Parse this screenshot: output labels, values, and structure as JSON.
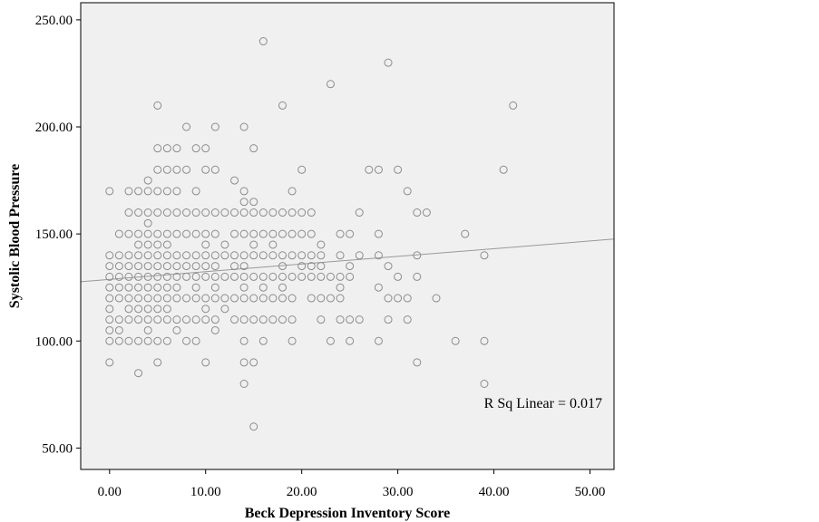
{
  "chart_data": {
    "type": "scatter",
    "xlabel": "Beck Depression Inventory Score",
    "ylabel": "Systolic Blood Pressure",
    "xlim": [
      -3,
      52.5
    ],
    "ylim": [
      40,
      258
    ],
    "x_ticks": [
      "0.00",
      "10.00",
      "20.00",
      "30.00",
      "40.00",
      "50.00"
    ],
    "y_ticks": [
      "50.00",
      "100.00",
      "150.00",
      "200.00",
      "250.00"
    ],
    "annotation": "R Sq Linear = 0.017",
    "fit_line": {
      "x": [
        -3,
        52.5
      ],
      "y": [
        127.7,
        147.6
      ]
    },
    "grid": false,
    "colors": {
      "plot_bg": "#f0f0f0",
      "marker": "#8c8c8c",
      "fit": "#999999",
      "frame": "#000000"
    },
    "points": [
      [
        0,
        170
      ],
      [
        0,
        140
      ],
      [
        0,
        135
      ],
      [
        0,
        130
      ],
      [
        0,
        125
      ],
      [
        0,
        120
      ],
      [
        0,
        115
      ],
      [
        0,
        110
      ],
      [
        0,
        105
      ],
      [
        0,
        100
      ],
      [
        0,
        90
      ],
      [
        1,
        150
      ],
      [
        1,
        140
      ],
      [
        1,
        130
      ],
      [
        1,
        120
      ],
      [
        1,
        110
      ],
      [
        1,
        100
      ],
      [
        1,
        105
      ],
      [
        1,
        125
      ],
      [
        1,
        135
      ],
      [
        2,
        170
      ],
      [
        2,
        160
      ],
      [
        2,
        150
      ],
      [
        2,
        140
      ],
      [
        2,
        135
      ],
      [
        2,
        130
      ],
      [
        2,
        125
      ],
      [
        2,
        120
      ],
      [
        2,
        115
      ],
      [
        2,
        110
      ],
      [
        2,
        100
      ],
      [
        3,
        170
      ],
      [
        3,
        160
      ],
      [
        3,
        150
      ],
      [
        3,
        145
      ],
      [
        3,
        140
      ],
      [
        3,
        135
      ],
      [
        3,
        130
      ],
      [
        3,
        125
      ],
      [
        3,
        120
      ],
      [
        3,
        115
      ],
      [
        3,
        110
      ],
      [
        3,
        100
      ],
      [
        3,
        85
      ],
      [
        4,
        175
      ],
      [
        4,
        170
      ],
      [
        4,
        160
      ],
      [
        4,
        155
      ],
      [
        4,
        150
      ],
      [
        4,
        145
      ],
      [
        4,
        140
      ],
      [
        4,
        135
      ],
      [
        4,
        130
      ],
      [
        4,
        125
      ],
      [
        4,
        120
      ],
      [
        4,
        115
      ],
      [
        4,
        110
      ],
      [
        4,
        105
      ],
      [
        4,
        100
      ],
      [
        5,
        210
      ],
      [
        5,
        190
      ],
      [
        5,
        180
      ],
      [
        5,
        170
      ],
      [
        5,
        160
      ],
      [
        5,
        150
      ],
      [
        5,
        145
      ],
      [
        5,
        140
      ],
      [
        5,
        135
      ],
      [
        5,
        130
      ],
      [
        5,
        125
      ],
      [
        5,
        120
      ],
      [
        5,
        115
      ],
      [
        5,
        110
      ],
      [
        5,
        100
      ],
      [
        5,
        90
      ],
      [
        6,
        190
      ],
      [
        6,
        180
      ],
      [
        6,
        170
      ],
      [
        6,
        160
      ],
      [
        6,
        150
      ],
      [
        6,
        145
      ],
      [
        6,
        140
      ],
      [
        6,
        135
      ],
      [
        6,
        130
      ],
      [
        6,
        125
      ],
      [
        6,
        120
      ],
      [
        6,
        115
      ],
      [
        6,
        110
      ],
      [
        6,
        100
      ],
      [
        7,
        190
      ],
      [
        7,
        180
      ],
      [
        7,
        170
      ],
      [
        7,
        160
      ],
      [
        7,
        150
      ],
      [
        7,
        140
      ],
      [
        7,
        135
      ],
      [
        7,
        130
      ],
      [
        7,
        125
      ],
      [
        7,
        120
      ],
      [
        7,
        110
      ],
      [
        7,
        105
      ],
      [
        8,
        200
      ],
      [
        8,
        180
      ],
      [
        8,
        160
      ],
      [
        8,
        150
      ],
      [
        8,
        140
      ],
      [
        8,
        135
      ],
      [
        8,
        130
      ],
      [
        8,
        120
      ],
      [
        8,
        110
      ],
      [
        8,
        100
      ],
      [
        9,
        190
      ],
      [
        9,
        170
      ],
      [
        9,
        160
      ],
      [
        9,
        150
      ],
      [
        9,
        140
      ],
      [
        9,
        135
      ],
      [
        9,
        130
      ],
      [
        9,
        125
      ],
      [
        9,
        120
      ],
      [
        9,
        110
      ],
      [
        9,
        100
      ],
      [
        10,
        190
      ],
      [
        10,
        180
      ],
      [
        10,
        160
      ],
      [
        10,
        150
      ],
      [
        10,
        145
      ],
      [
        10,
        140
      ],
      [
        10,
        135
      ],
      [
        10,
        130
      ],
      [
        10,
        120
      ],
      [
        10,
        115
      ],
      [
        10,
        110
      ],
      [
        10,
        90
      ],
      [
        11,
        200
      ],
      [
        11,
        180
      ],
      [
        11,
        160
      ],
      [
        11,
        150
      ],
      [
        11,
        140
      ],
      [
        11,
        135
      ],
      [
        11,
        130
      ],
      [
        11,
        125
      ],
      [
        11,
        120
      ],
      [
        11,
        110
      ],
      [
        11,
        105
      ],
      [
        12,
        160
      ],
      [
        12,
        145
      ],
      [
        12,
        140
      ],
      [
        12,
        130
      ],
      [
        12,
        120
      ],
      [
        12,
        115
      ],
      [
        13,
        175
      ],
      [
        13,
        160
      ],
      [
        13,
        150
      ],
      [
        13,
        140
      ],
      [
        13,
        135
      ],
      [
        13,
        130
      ],
      [
        13,
        120
      ],
      [
        13,
        110
      ],
      [
        14,
        200
      ],
      [
        14,
        170
      ],
      [
        14,
        165
      ],
      [
        14,
        160
      ],
      [
        14,
        150
      ],
      [
        14,
        140
      ],
      [
        14,
        135
      ],
      [
        14,
        130
      ],
      [
        14,
        125
      ],
      [
        14,
        120
      ],
      [
        14,
        110
      ],
      [
        14,
        100
      ],
      [
        14,
        90
      ],
      [
        14,
        80
      ],
      [
        15,
        190
      ],
      [
        15,
        165
      ],
      [
        15,
        160
      ],
      [
        15,
        150
      ],
      [
        15,
        145
      ],
      [
        15,
        140
      ],
      [
        15,
        130
      ],
      [
        15,
        120
      ],
      [
        15,
        110
      ],
      [
        15,
        90
      ],
      [
        15,
        60
      ],
      [
        16,
        240
      ],
      [
        16,
        160
      ],
      [
        16,
        150
      ],
      [
        16,
        140
      ],
      [
        16,
        130
      ],
      [
        16,
        125
      ],
      [
        16,
        120
      ],
      [
        16,
        110
      ],
      [
        16,
        100
      ],
      [
        17,
        160
      ],
      [
        17,
        150
      ],
      [
        17,
        145
      ],
      [
        17,
        140
      ],
      [
        17,
        130
      ],
      [
        17,
        120
      ],
      [
        17,
        110
      ],
      [
        18,
        210
      ],
      [
        18,
        160
      ],
      [
        18,
        150
      ],
      [
        18,
        140
      ],
      [
        18,
        135
      ],
      [
        18,
        130
      ],
      [
        18,
        125
      ],
      [
        18,
        120
      ],
      [
        18,
        110
      ],
      [
        19,
        170
      ],
      [
        19,
        160
      ],
      [
        19,
        150
      ],
      [
        19,
        140
      ],
      [
        19,
        130
      ],
      [
        19,
        120
      ],
      [
        19,
        110
      ],
      [
        19,
        100
      ],
      [
        20,
        180
      ],
      [
        20,
        160
      ],
      [
        20,
        150
      ],
      [
        20,
        140
      ],
      [
        20,
        135
      ],
      [
        20,
        130
      ],
      [
        21,
        160
      ],
      [
        21,
        150
      ],
      [
        21,
        140
      ],
      [
        21,
        135
      ],
      [
        21,
        130
      ],
      [
        21,
        120
      ],
      [
        22,
        145
      ],
      [
        22,
        140
      ],
      [
        22,
        135
      ],
      [
        22,
        130
      ],
      [
        22,
        120
      ],
      [
        22,
        110
      ],
      [
        23,
        220
      ],
      [
        23,
        130
      ],
      [
        23,
        120
      ],
      [
        23,
        100
      ],
      [
        24,
        150
      ],
      [
        24,
        140
      ],
      [
        24,
        130
      ],
      [
        24,
        125
      ],
      [
        24,
        120
      ],
      [
        24,
        110
      ],
      [
        25,
        150
      ],
      [
        25,
        135
      ],
      [
        25,
        130
      ],
      [
        25,
        110
      ],
      [
        25,
        100
      ],
      [
        26,
        160
      ],
      [
        26,
        140
      ],
      [
        26,
        110
      ],
      [
        27,
        180
      ],
      [
        28,
        180
      ],
      [
        28,
        150
      ],
      [
        28,
        140
      ],
      [
        28,
        125
      ],
      [
        28,
        100
      ],
      [
        29,
        230
      ],
      [
        29,
        135
      ],
      [
        29,
        120
      ],
      [
        29,
        110
      ],
      [
        30,
        180
      ],
      [
        30,
        130
      ],
      [
        30,
        120
      ],
      [
        31,
        170
      ],
      [
        31,
        120
      ],
      [
        31,
        110
      ],
      [
        32,
        160
      ],
      [
        32,
        140
      ],
      [
        32,
        130
      ],
      [
        32,
        90
      ],
      [
        33,
        160
      ],
      [
        34,
        120
      ],
      [
        36,
        100
      ],
      [
        37,
        150
      ],
      [
        39,
        140
      ],
      [
        39,
        100
      ],
      [
        39,
        80
      ],
      [
        41,
        180
      ],
      [
        42,
        210
      ]
    ]
  }
}
